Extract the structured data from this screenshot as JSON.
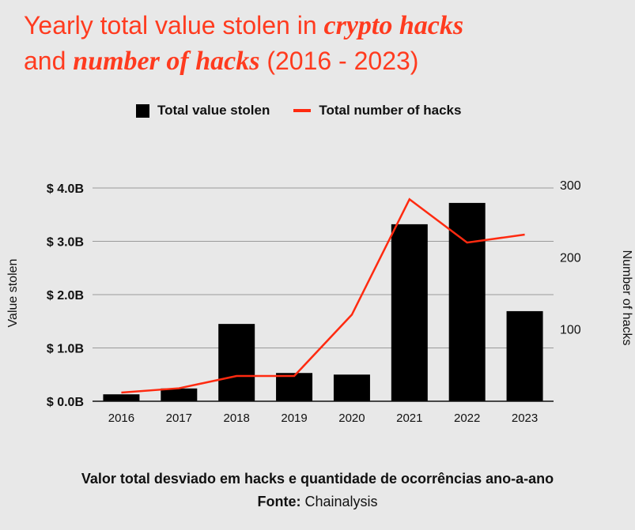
{
  "title": {
    "part1": "Yearly total value stolen in ",
    "part2": "crypto hacks",
    "part3": "and ",
    "part4": "number of hacks",
    "part5": " (2016 - 2023)"
  },
  "caption": {
    "line1": "Valor total desviado em hacks e quantidade de ocorrências ano-a-ano",
    "source_label": "Fonte:",
    "source_value": " Chainalysis"
  },
  "colors": {
    "bars": "#000000",
    "line": "#ff2a10",
    "title": "#ff3b1f",
    "background": "#e8e8e8"
  },
  "chart_data": {
    "type": "bar",
    "categories": [
      "2016",
      "2017",
      "2018",
      "2019",
      "2020",
      "2021",
      "2022",
      "2023"
    ],
    "series": [
      {
        "name": "Total value stolen",
        "type": "bar",
        "axis": "left",
        "unit": "B USD",
        "values": [
          0.13,
          0.24,
          1.45,
          0.53,
          0.5,
          3.32,
          3.72,
          1.69
        ]
      },
      {
        "name": "Total number of hacks",
        "type": "line",
        "axis": "right",
        "values": [
          12,
          18,
          35,
          35,
          120,
          280,
          220,
          231
        ]
      }
    ],
    "yleft": {
      "label": "Value stolen",
      "ticks": [
        "$ 0.0B",
        "$ 1.0B",
        "$ 2.0B",
        "$ 3.0B",
        "$ 4.0B"
      ],
      "ylim": [
        0,
        4
      ]
    },
    "yright": {
      "label": "Number of hacks",
      "ticks": [
        "100",
        "200",
        "300"
      ],
      "ylim": [
        0,
        300
      ]
    },
    "grid": true,
    "legend": "top-center"
  }
}
